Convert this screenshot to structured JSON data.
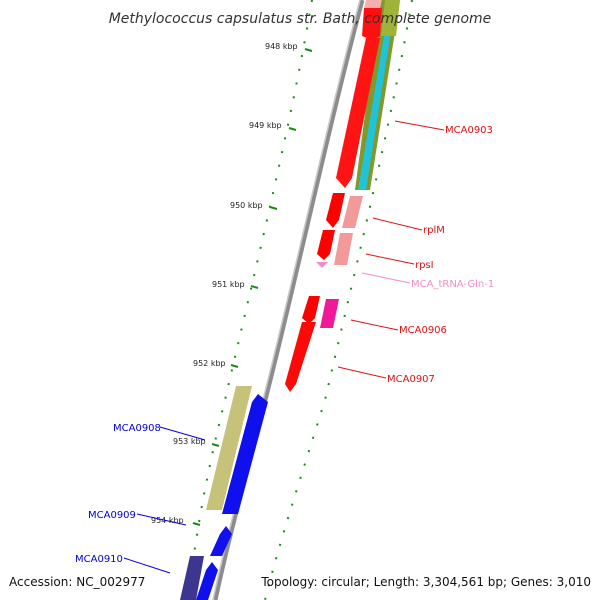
{
  "map": {
    "title": "Methylococcus capsulatus str. Bath, complete genome",
    "accession": "Accession: NC_002977",
    "topology": "Topology: circular; Length: 3,304,561 bp; Genes: 3,010",
    "ticks": [
      "948 kbp",
      "949 kbp",
      "950 kbp",
      "951 kbp",
      "952 kbp",
      "953 kbp",
      "954 kbp"
    ],
    "gene_labels": [
      {
        "text": "MCA0903",
        "color": "#dd1111"
      },
      {
        "text": "rplM",
        "color": "#dd1111"
      },
      {
        "text": "rpsI",
        "color": "#dd1111"
      },
      {
        "text": "MCA_tRNA-Gln-1",
        "color": "#f08cc8"
      },
      {
        "text": "MCA0906",
        "color": "#dd1111"
      },
      {
        "text": "MCA0907",
        "color": "#dd1111"
      },
      {
        "text": "MCA0908",
        "color": "#0000dd"
      },
      {
        "text": "MCA0909",
        "color": "#0000dd"
      },
      {
        "text": "MCA0910",
        "color": "#0000dd"
      }
    ],
    "colors": {
      "forward_cds": "#ff0000",
      "reverse_cds": "#0000ff",
      "trna": "#f08cc8",
      "tick": "#1a8a1a",
      "backbone": "#888888"
    }
  }
}
